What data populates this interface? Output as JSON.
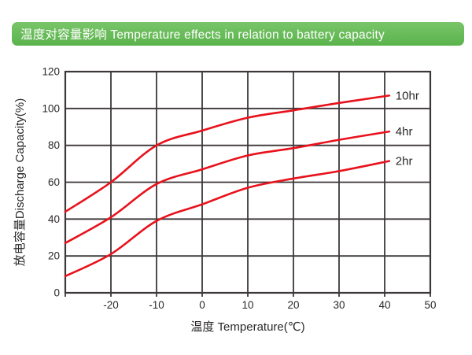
{
  "header": {
    "title": "温度对容量影响 Temperature effects in relation to battery capacity",
    "bg_top": "#79c569",
    "bg_bottom": "#5bb34c",
    "text_color": "#ffffff"
  },
  "chart_data": {
    "type": "line",
    "title": "",
    "xlabel": "温度 Temperature(℃)",
    "ylabel": "放电容量Discharge Capacity(%)",
    "xlim": [
      -30,
      50
    ],
    "ylim": [
      0,
      120
    ],
    "xticks": [
      -20,
      -10,
      0,
      10,
      20,
      30,
      40,
      50
    ],
    "yticks": [
      0,
      20,
      40,
      60,
      80,
      100,
      120
    ],
    "grid": true,
    "grid_step_x": 10,
    "grid_step_y": 20,
    "legend_position": "end-of-line",
    "line_color": "#e8121c",
    "grid_color": "#3c3738",
    "text_color": "#2b2728",
    "x": [
      -30,
      -20,
      -10,
      0,
      10,
      20,
      30,
      41
    ],
    "series": [
      {
        "name": "10hr",
        "values": [
          44,
          60,
          80,
          88,
          95,
          99,
          103,
          107
        ]
      },
      {
        "name": "4hr",
        "values": [
          27,
          41,
          59,
          67,
          74.5,
          78.5,
          83,
          87.5
        ]
      },
      {
        "name": "2hr",
        "values": [
          9,
          21,
          39,
          48,
          57,
          62,
          66,
          71.5
        ]
      }
    ]
  }
}
